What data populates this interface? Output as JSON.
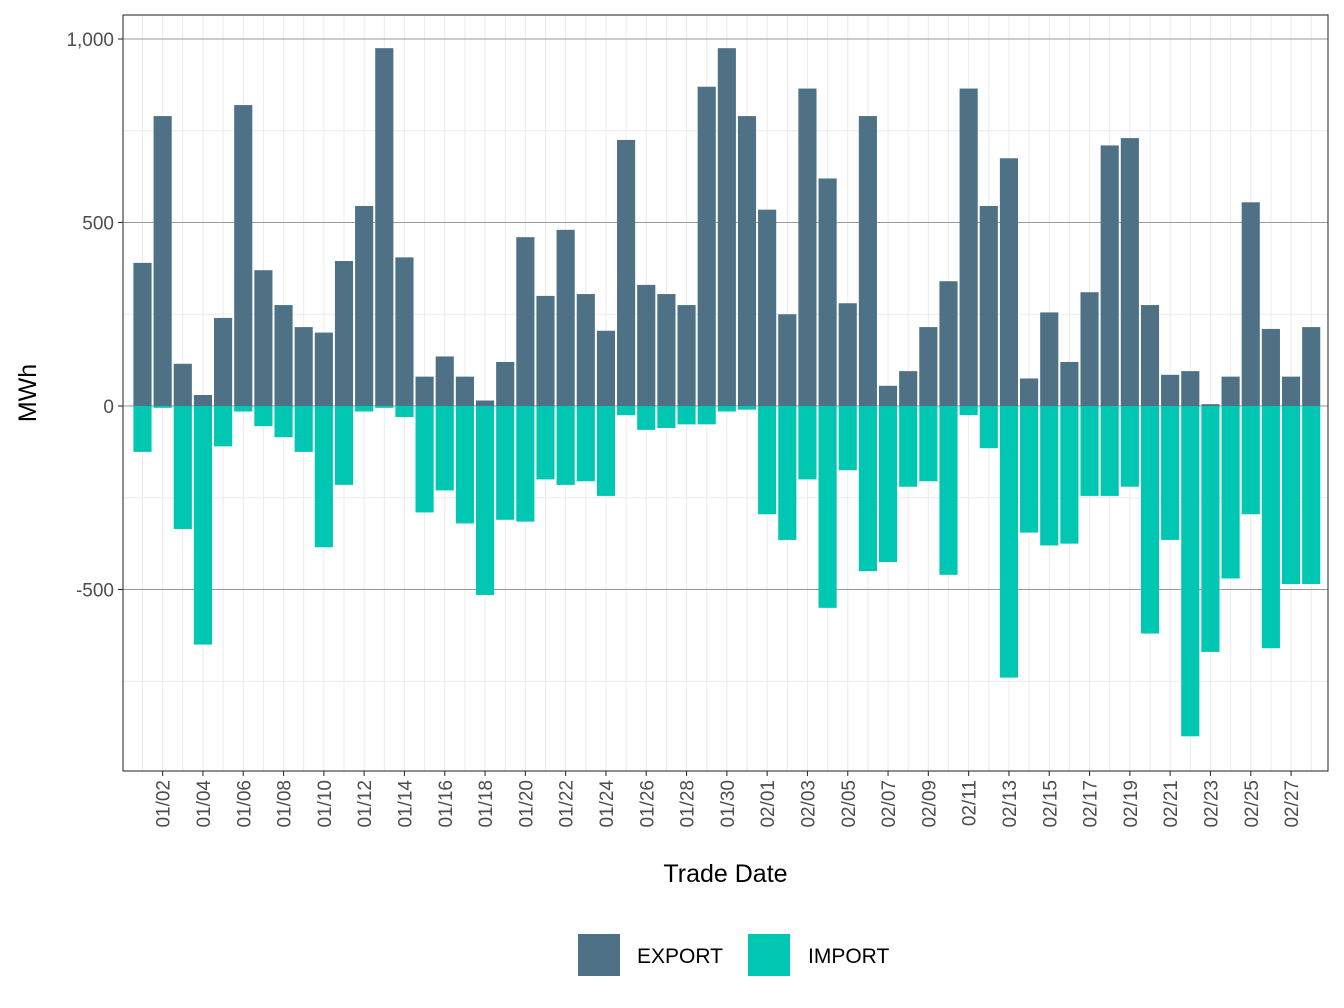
{
  "chart_data": {
    "type": "bar",
    "stacked": "diverging",
    "title": "",
    "xlabel": "Trade Date",
    "ylabel": "MWh",
    "ylim": [
      -1000,
      1000
    ],
    "yticks": [
      -500,
      0,
      500,
      1000
    ],
    "ytick_labels": [
      "-500",
      "0",
      "500",
      "1,000"
    ],
    "xtick_labels": [
      "01/02",
      "01/04",
      "01/06",
      "01/08",
      "01/10",
      "01/12",
      "01/14",
      "01/16",
      "01/18",
      "01/20",
      "01/22",
      "01/24",
      "01/26",
      "01/28",
      "01/30",
      "02/01",
      "02/03",
      "02/05",
      "02/07",
      "02/09",
      "02/11",
      "02/13",
      "02/15",
      "02/17",
      "02/19",
      "02/21",
      "02/23",
      "02/25",
      "02/27"
    ],
    "categories": [
      "01/01",
      "01/02",
      "01/03",
      "01/04",
      "01/05",
      "01/06",
      "01/07",
      "01/08",
      "01/09",
      "01/10",
      "01/11",
      "01/12",
      "01/13",
      "01/14",
      "01/15",
      "01/16",
      "01/17",
      "01/18",
      "01/19",
      "01/20",
      "01/21",
      "01/22",
      "01/23",
      "01/24",
      "01/25",
      "01/26",
      "01/27",
      "01/28",
      "01/29",
      "01/30",
      "01/31",
      "02/01",
      "02/02",
      "02/03",
      "02/04",
      "02/05",
      "02/06",
      "02/07",
      "02/08",
      "02/09",
      "02/10",
      "02/11",
      "02/12",
      "02/13",
      "02/14",
      "02/15",
      "02/16",
      "02/17",
      "02/18",
      "02/19",
      "02/20",
      "02/21",
      "02/22",
      "02/23",
      "02/24",
      "02/25",
      "02/26",
      "02/27",
      "02/28"
    ],
    "series": [
      {
        "name": "EXPORT",
        "color": "#4e7185",
        "values": [
          390,
          790,
          115,
          30,
          240,
          820,
          370,
          275,
          215,
          200,
          395,
          545,
          975,
          405,
          80,
          135,
          80,
          15,
          120,
          460,
          300,
          480,
          305,
          205,
          725,
          330,
          305,
          275,
          870,
          975,
          790,
          535,
          250,
          865,
          620,
          280,
          790,
          55,
          95,
          215,
          340,
          865,
          545,
          675,
          75,
          255,
          120,
          310,
          710,
          730,
          275,
          85,
          95,
          5,
          80,
          555,
          210,
          80,
          215
        ]
      },
      {
        "name": "IMPORT",
        "color": "#00c7b2",
        "values": [
          -125,
          -5,
          -335,
          -650,
          -110,
          -15,
          -55,
          -85,
          -125,
          -385,
          -215,
          -15,
          -5,
          -30,
          -290,
          -230,
          -320,
          -515,
          -310,
          -315,
          -200,
          -215,
          -205,
          -245,
          -25,
          -65,
          -60,
          -50,
          -50,
          -15,
          -10,
          -295,
          -365,
          -200,
          -550,
          -175,
          -450,
          -425,
          -220,
          -205,
          -460,
          -25,
          -115,
          -740,
          -345,
          -380,
          -375,
          -245,
          -245,
          -220,
          -620,
          -365,
          -900,
          -670,
          -470,
          -295,
          -660,
          -485,
          -485
        ]
      }
    ],
    "legend": {
      "position": "bottom",
      "entries": [
        "EXPORT",
        "IMPORT"
      ]
    },
    "grid": true
  }
}
